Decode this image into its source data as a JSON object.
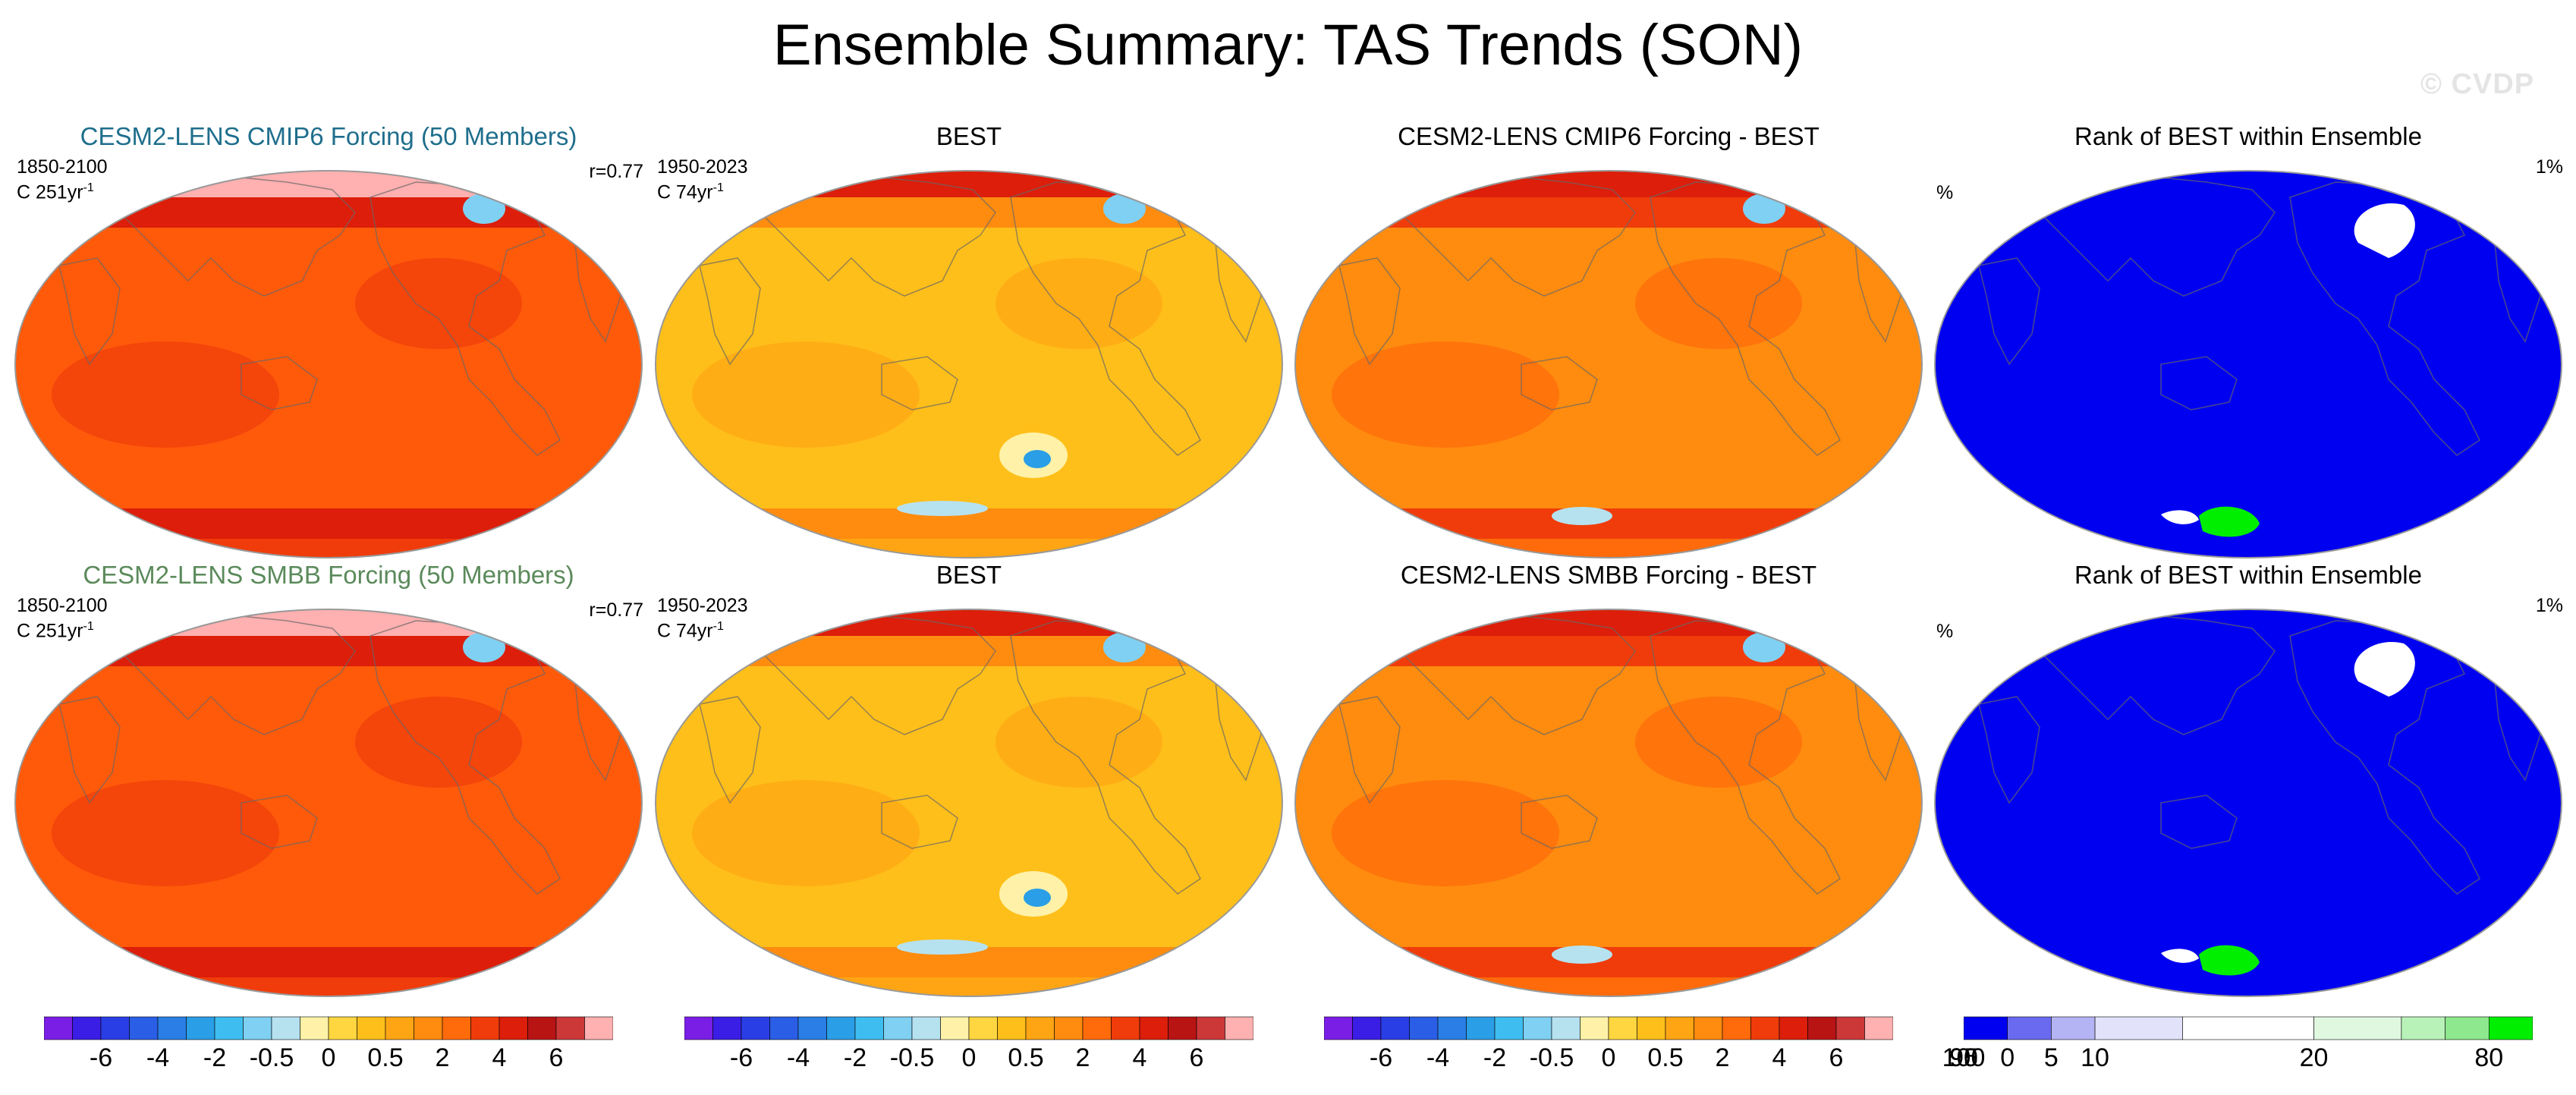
{
  "title": "Ensemble Summary: TAS Trends (SON)",
  "watermark": "© CVDP",
  "colors": {
    "title_blue": "#1f6e8c",
    "title_green": "#5b8a5b",
    "rank_blue": "#0000f0",
    "rank_green": "#00ee00",
    "ocean_edge": "#999999"
  },
  "panels": [
    {
      "title": "CESM2-LENS CMIP6 Forcing (50 Members)",
      "left_top": "1850-2100",
      "left_bottom_unit": "C 251yr",
      "exp": "-1",
      "right_top": "r=0.77",
      "type": "model"
    },
    {
      "title": "BEST",
      "left_top": "1950-2023",
      "left_bottom_unit": "C 74yr",
      "exp": "-1",
      "right_top": "",
      "type": "obs"
    },
    {
      "title": "CESM2-LENS CMIP6 Forcing - BEST",
      "left_top": "",
      "left_bottom_unit": "",
      "exp": "",
      "right_top": "",
      "type": "diff"
    },
    {
      "title": "Rank of BEST within Ensemble",
      "left_top": "%",
      "left_bottom_unit": "",
      "exp": "",
      "right_top": "1%",
      "type": "rank"
    },
    {
      "title": "CESM2-LENS SMBB Forcing (50 Members)",
      "left_top": "1850-2100",
      "left_bottom_unit": "C 251yr",
      "exp": "-1",
      "right_top": "r=0.77",
      "type": "model"
    },
    {
      "title": "BEST",
      "left_top": "1950-2023",
      "left_bottom_unit": "C 74yr",
      "exp": "-1",
      "right_top": "",
      "type": "obs"
    },
    {
      "title": "CESM2-LENS SMBB Forcing - BEST",
      "left_top": "",
      "left_bottom_unit": "",
      "exp": "",
      "right_top": "",
      "type": "diff"
    },
    {
      "title": "Rank of BEST within Ensemble",
      "left_top": "%",
      "left_bottom_unit": "",
      "exp": "",
      "right_top": "1%",
      "type": "rank"
    }
  ],
  "trend_colorbar": {
    "colors": [
      "#7a1ee6",
      "#3a1ee6",
      "#2a3ee6",
      "#2a5ee6",
      "#2a7ee6",
      "#2a9ee6",
      "#3ebef0",
      "#7fd0f2",
      "#b6e2f0",
      "#fff2a8",
      "#ffd640",
      "#ffbf1a",
      "#ffa514",
      "#ff8c0f",
      "#ff6a0a",
      "#f03c0a",
      "#dc1e0a",
      "#b81414",
      "#cc3838",
      "#ffb0b0"
    ],
    "ticks": [
      {
        "label": "-6",
        "boundary": 2
      },
      {
        "label": "-4",
        "boundary": 4
      },
      {
        "label": "-2",
        "boundary": 6
      },
      {
        "label": "-0.5",
        "boundary": 8
      },
      {
        "label": "0",
        "boundary": 10
      },
      {
        "label": "0.5",
        "boundary": 12
      },
      {
        "label": "2",
        "boundary": 14
      },
      {
        "label": "4",
        "boundary": 16
      },
      {
        "label": "6",
        "boundary": 18
      }
    ]
  },
  "rank_colorbar": {
    "colors": [
      "#0000f0",
      "#6a6af0",
      "#b4b4f4",
      "#e2e2fa",
      "#ffffff",
      "#e0f7e0",
      "#b8f2b8",
      "#8ee88e",
      "#00ee00"
    ],
    "widths": [
      1,
      1,
      1,
      2,
      3,
      2,
      1,
      1,
      1
    ],
    "ticks": [
      {
        "label": "0",
        "boundary": 1
      },
      {
        "label": "5",
        "boundary": 2
      },
      {
        "label": "10",
        "boundary": 3
      },
      {
        "label": "20",
        "boundary": 5
      },
      {
        "label": "80",
        "boundary": 8
      },
      {
        "label": "90",
        "boundary": 10
      },
      {
        "label": "95",
        "boundary": 11
      },
      {
        "label": "100",
        "boundary": 12
      }
    ]
  }
}
